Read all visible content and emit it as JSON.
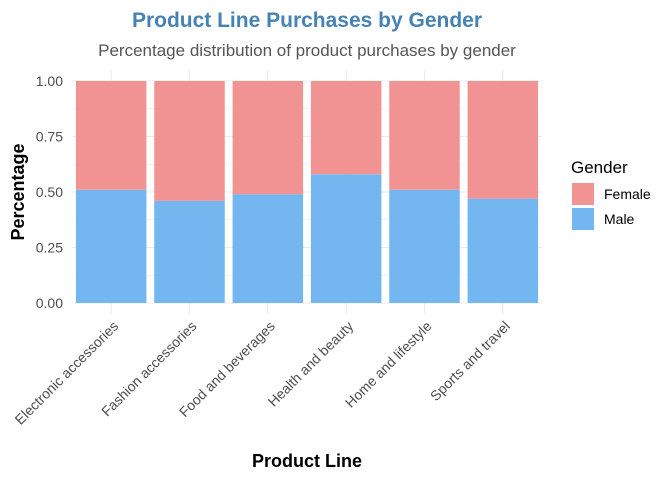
{
  "chart_data": {
    "type": "bar",
    "stacked": true,
    "title": "Product Line Purchases by Gender",
    "subtitle": "Percentage distribution of product purchases by gender",
    "xlabel": "Product Line",
    "ylabel": "Percentage",
    "ylim": [
      0,
      1
    ],
    "yticks": [
      "0.00",
      "0.25",
      "0.50",
      "0.75",
      "1.00"
    ],
    "grid": true,
    "legend": {
      "title": "Gender",
      "position": "right",
      "entries": [
        "Female",
        "Male"
      ]
    },
    "categories": [
      "Electronic accessories",
      "Fashion accessories",
      "Food and beverages",
      "Health and beauty",
      "Home and lifestyle",
      "Sports and travel"
    ],
    "series": [
      {
        "name": "Male",
        "values": [
          0.51,
          0.46,
          0.49,
          0.58,
          0.51,
          0.47
        ],
        "color": "#74b6f0"
      },
      {
        "name": "Female",
        "values": [
          0.49,
          0.54,
          0.51,
          0.42,
          0.49,
          0.53
        ],
        "color": "#f19393"
      }
    ],
    "title_color": "#4682b4",
    "grid_color": "#ebebeb"
  }
}
